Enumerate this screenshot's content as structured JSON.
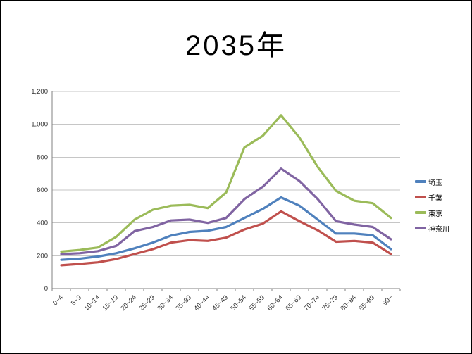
{
  "title": "2035年",
  "chart_data": {
    "type": "line",
    "title": "2035年",
    "categories": [
      "0~4",
      "5~9",
      "10~14",
      "15~19",
      "20~24",
      "25~29",
      "30~34",
      "35~39",
      "40~44",
      "45~49",
      "50~54",
      "55~59",
      "60~64",
      "65~69",
      "70~74",
      "75~79",
      "80~84",
      "85~89",
      "90~"
    ],
    "series": [
      {
        "name": "埼玉",
        "color": "#4F81BD",
        "values": [
          175,
          182,
          195,
          215,
          245,
          280,
          323,
          345,
          352,
          375,
          430,
          485,
          555,
          505,
          420,
          335,
          335,
          325,
          240
        ]
      },
      {
        "name": "千葉",
        "color": "#C0504D",
        "values": [
          142,
          150,
          160,
          180,
          210,
          240,
          280,
          295,
          290,
          310,
          360,
          395,
          470,
          410,
          355,
          285,
          290,
          280,
          210
        ]
      },
      {
        "name": "東京",
        "color": "#9BBB59",
        "values": [
          225,
          235,
          250,
          315,
          420,
          480,
          505,
          510,
          490,
          585,
          860,
          930,
          1055,
          920,
          740,
          595,
          535,
          520,
          430
        ]
      },
      {
        "name": "神奈川",
        "color": "#8064A2",
        "values": [
          210,
          215,
          228,
          260,
          350,
          375,
          415,
          420,
          400,
          430,
          545,
          620,
          730,
          655,
          545,
          410,
          390,
          375,
          300
        ]
      }
    ],
    "xlabel": "",
    "ylabel": "",
    "ylim": [
      0,
      1200
    ],
    "ytick_step": 200,
    "ytick_labels": [
      "0",
      "200",
      "400",
      "600",
      "800",
      "1,000",
      "1,200"
    ],
    "grid": "horizontal",
    "legend_position": "right",
    "axis_color": "#808080",
    "grid_color": "#C6C6C6",
    "tick_label_color": "#333333"
  }
}
